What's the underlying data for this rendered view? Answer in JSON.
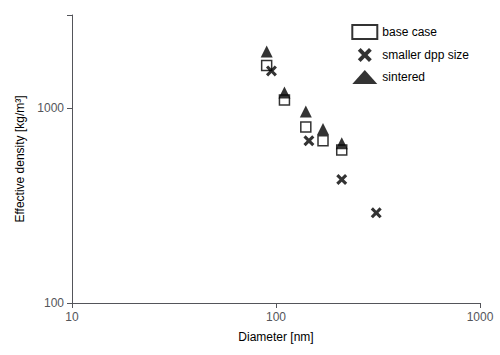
{
  "chart_data": {
    "type": "scatter",
    "xlabel": "Diameter [nm]",
    "ylabel": "Effective density [kg/m³]",
    "log": true,
    "xlim": [
      10,
      1000
    ],
    "ylim": [
      100,
      3000
    ],
    "xticks": [
      10,
      100,
      1000
    ],
    "yticks": [
      100,
      1000
    ],
    "grid": false,
    "legend": "upper right",
    "series": [
      {
        "name": "base case",
        "color": "black",
        "marker": "square-open",
        "x": [
          90,
          110,
          140,
          170,
          210
        ],
        "values": [
          1650,
          1100,
          800,
          680,
          610
        ]
      },
      {
        "name": "smaller dpp size",
        "color": "black",
        "marker": "x",
        "x": [
          95,
          145,
          210,
          310
        ],
        "values": [
          1550,
          680,
          430,
          290
        ]
      },
      {
        "name": "sintered",
        "color": "black",
        "marker": "triangle",
        "x": [
          90,
          110,
          140,
          170,
          210
        ],
        "values": [
          1950,
          1200,
          960,
          780,
          660
        ]
      }
    ]
  }
}
